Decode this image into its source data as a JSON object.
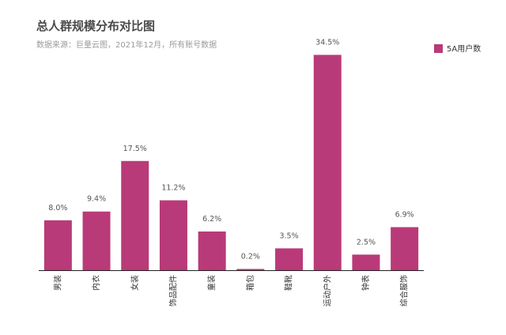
{
  "header": {
    "title": "总人群规模分布对比图",
    "subtitle": "数据来源：巨量云图，2021年12月，所有账号数据"
  },
  "colors": {
    "bar": "#b93a78",
    "axis": "#222222"
  },
  "chart_data": {
    "type": "bar",
    "categories": [
      "男装",
      "内衣",
      "女装",
      "饰品配件",
      "童装",
      "箱包",
      "鞋靴",
      "运动户外",
      "钟表",
      "综合服饰"
    ],
    "series": [
      {
        "name": "5A用户数",
        "values": [
          8.0,
          9.4,
          17.5,
          11.2,
          6.2,
          0.2,
          3.5,
          34.5,
          2.5,
          6.9
        ],
        "labels": [
          "8.0%",
          "9.4%",
          "17.5%",
          "11.2%",
          "6.2%",
          "0.2%",
          "3.5%",
          "34.5%",
          "2.5%",
          "6.9%"
        ]
      }
    ],
    "title": "总人群规模分布对比图",
    "subtitle": "数据来源：巨量云图，2021年12月，所有账号数据",
    "ylim": [
      0,
      36
    ],
    "grid": false,
    "legend": "top-right"
  }
}
